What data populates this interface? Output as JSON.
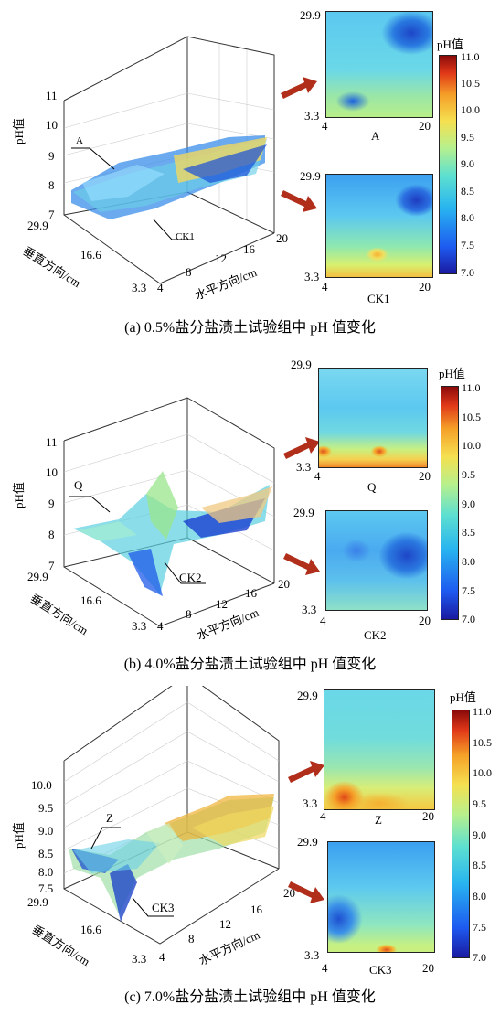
{
  "panels": [
    {
      "caption": "(a) 0.5%盐分盐渍土试验组中 pH 值变化",
      "z_ticks": [
        "11",
        "10",
        "9",
        "8",
        "7"
      ],
      "zlabel": "pH值",
      "y_ticks": [
        "29.9",
        "16.6",
        "3.3"
      ],
      "ylabel": "垂直方向/cm",
      "x_ticks": [
        "4",
        "8",
        "12",
        "16",
        "20"
      ],
      "xlabel": "水平方向/cm",
      "surf_labels": [
        "A",
        "CK1"
      ],
      "heatmaps": [
        {
          "name": "A",
          "ytop": "29.9",
          "ybot": "3.3",
          "xl": "4",
          "xr": "20"
        },
        {
          "name": "CK1",
          "ytop": "29.9",
          "ybot": "3.3",
          "xl": "4",
          "xr": "20"
        }
      ],
      "cbar_title": "pH值",
      "cbar_ticks": [
        "11.0",
        "10.5",
        "10.0",
        "9.5",
        "9.0",
        "8.5",
        "8.0",
        "7.5",
        "7.0"
      ]
    },
    {
      "caption": "(b) 4.0%盐分盐渍土试验组中 pH 值变化",
      "z_ticks": [
        "11",
        "10",
        "9",
        "8",
        "7"
      ],
      "zlabel": "pH值",
      "y_ticks": [
        "29.9",
        "16.6",
        "3.3"
      ],
      "ylabel": "垂直方向/cm",
      "x_ticks": [
        "4",
        "8",
        "12",
        "16",
        "20"
      ],
      "xlabel": "水平方向/cm",
      "surf_labels": [
        "Q",
        "CK2"
      ],
      "heatmaps": [
        {
          "name": "Q",
          "ytop": "29.9",
          "ybot": "3.3",
          "xl": "4",
          "xr": "20"
        },
        {
          "name": "CK2",
          "ytop": "29.9",
          "ybot": "3.3",
          "xl": "4",
          "xr": "20"
        }
      ],
      "cbar_title": "pH值",
      "cbar_ticks": [
        "11.0",
        "10.5",
        "10.0",
        "9.5",
        "9.0",
        "8.5",
        "8.0",
        "7.5",
        "7.0"
      ]
    },
    {
      "caption": "(c) 7.0%盐分盐渍土试验组中 pH 值变化",
      "z_ticks": [
        "10.0",
        "9.5",
        "9.0",
        "8.5",
        "8.0",
        "7.5"
      ],
      "zlabel": "pH值",
      "y_ticks": [
        "29.9",
        "16.6",
        "3.3"
      ],
      "ylabel": "垂直方向/cm",
      "x_ticks": [
        "4",
        "8",
        "12",
        "16",
        "20"
      ],
      "xlabel": "水平方向/cm",
      "surf_labels": [
        "Z",
        "CK3"
      ],
      "heatmaps": [
        {
          "name": "Z",
          "ytop": "29.9",
          "ybot": "3.3",
          "xl": "4",
          "xr": "20"
        },
        {
          "name": "CK3",
          "ytop": "29.9",
          "ybot": "3.3",
          "xl": "4",
          "xr": "20"
        }
      ],
      "cbar_title": "pH值",
      "cbar_ticks": [
        "11.0",
        "10.5",
        "10.0",
        "9.5",
        "9.0",
        "8.5",
        "8.0",
        "7.5",
        "7.0"
      ]
    }
  ]
}
